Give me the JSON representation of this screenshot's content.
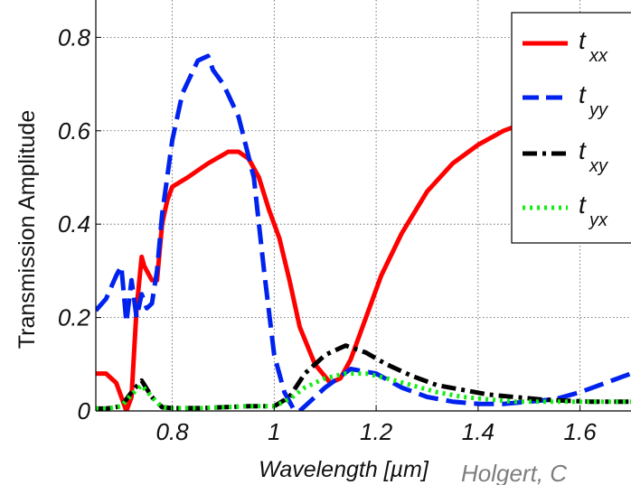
{
  "chart_data": {
    "type": "line",
    "title": "",
    "xlabel": "Wavelength [µm]",
    "ylabel": "Transmission Amplitude",
    "xlim": [
      0.65,
      1.7
    ],
    "ylim": [
      0,
      0.88
    ],
    "x_ticks": [
      0.8,
      1,
      1.2,
      1.4,
      1.6
    ],
    "x_tick_labels": [
      "0.8",
      "1",
      "1.2",
      "1.4",
      "1.6"
    ],
    "y_ticks": [
      0,
      0.2,
      0.4,
      0.6,
      0.8
    ],
    "y_tick_labels": [
      "0",
      "0.2",
      "0.4",
      "0.6",
      "0.8"
    ],
    "grid": true,
    "legend_position": "top-right",
    "watermark": "Holgert, C",
    "series": [
      {
        "name": "txx",
        "label_main": "t",
        "label_sub": "xx",
        "color": "#ff0000",
        "dash": "solid",
        "x": [
          0.65,
          0.67,
          0.69,
          0.71,
          0.72,
          0.73,
          0.74,
          0.745,
          0.76,
          0.77,
          0.78,
          0.79,
          0.8,
          0.83,
          0.87,
          0.91,
          0.93,
          0.95,
          0.97,
          0.99,
          1.01,
          1.03,
          1.05,
          1.08,
          1.11,
          1.13,
          1.15,
          1.18,
          1.21,
          1.25,
          1.3,
          1.35,
          1.4,
          1.45,
          1.5,
          1.55,
          1.6,
          1.65,
          1.7
        ],
        "y": [
          0.08,
          0.08,
          0.06,
          0.0,
          0.03,
          0.22,
          0.33,
          0.31,
          0.28,
          0.28,
          0.4,
          0.45,
          0.48,
          0.5,
          0.53,
          0.555,
          0.555,
          0.54,
          0.5,
          0.43,
          0.37,
          0.28,
          0.18,
          0.1,
          0.06,
          0.07,
          0.11,
          0.2,
          0.29,
          0.38,
          0.47,
          0.53,
          0.57,
          0.6,
          0.62,
          0.64,
          0.66,
          0.68,
          0.695
        ]
      },
      {
        "name": "tyy",
        "label_main": "t",
        "label_sub": "yy",
        "color": "#0022ee",
        "dash": "dashed",
        "x": [
          0.65,
          0.67,
          0.69,
          0.7,
          0.71,
          0.72,
          0.73,
          0.74,
          0.75,
          0.76,
          0.77,
          0.78,
          0.8,
          0.82,
          0.85,
          0.87,
          0.88,
          0.9,
          0.93,
          0.96,
          0.98,
          1.0,
          1.02,
          1.04,
          1.05,
          1.07,
          1.1,
          1.15,
          1.2,
          1.25,
          1.3,
          1.35,
          1.4,
          1.45,
          1.5,
          1.55,
          1.6,
          1.65,
          1.7
        ],
        "y": [
          0.215,
          0.24,
          0.29,
          0.31,
          0.19,
          0.28,
          0.2,
          0.25,
          0.22,
          0.23,
          0.3,
          0.42,
          0.58,
          0.68,
          0.75,
          0.76,
          0.73,
          0.7,
          0.63,
          0.5,
          0.3,
          0.12,
          0.04,
          0.0,
          0.0,
          0.02,
          0.05,
          0.09,
          0.08,
          0.05,
          0.03,
          0.02,
          0.015,
          0.015,
          0.02,
          0.025,
          0.04,
          0.06,
          0.08
        ]
      },
      {
        "name": "txy",
        "label_main": "t",
        "label_sub": "xy",
        "color": "#000000",
        "dash": "dashdot",
        "x": [
          0.65,
          0.67,
          0.7,
          0.72,
          0.74,
          0.76,
          0.78,
          0.8,
          0.85,
          0.9,
          0.95,
          1.0,
          1.03,
          1.06,
          1.1,
          1.14,
          1.18,
          1.22,
          1.27,
          1.32,
          1.37,
          1.42,
          1.47,
          1.52,
          1.57,
          1.62,
          1.67,
          1.7
        ],
        "y": [
          0.005,
          0.005,
          0.01,
          0.04,
          0.065,
          0.03,
          0.008,
          0.006,
          0.006,
          0.008,
          0.01,
          0.01,
          0.03,
          0.08,
          0.12,
          0.14,
          0.125,
          0.1,
          0.075,
          0.055,
          0.045,
          0.035,
          0.03,
          0.025,
          0.022,
          0.02,
          0.02,
          0.02
        ]
      },
      {
        "name": "tyx",
        "label_main": "t",
        "label_sub": "yx",
        "color": "#11ee11",
        "dash": "dotted",
        "x": [
          0.65,
          0.67,
          0.7,
          0.72,
          0.74,
          0.76,
          0.78,
          0.8,
          0.85,
          0.9,
          0.95,
          1.0,
          1.03,
          1.06,
          1.1,
          1.14,
          1.18,
          1.22,
          1.27,
          1.32,
          1.37,
          1.42,
          1.47,
          1.52,
          1.57,
          1.62,
          1.67,
          1.7
        ],
        "y": [
          0.005,
          0.005,
          0.01,
          0.035,
          0.055,
          0.03,
          0.008,
          0.006,
          0.006,
          0.008,
          0.01,
          0.01,
          0.025,
          0.05,
          0.07,
          0.08,
          0.08,
          0.07,
          0.055,
          0.04,
          0.03,
          0.025,
          0.02,
          0.02,
          0.02,
          0.02,
          0.02,
          0.02
        ]
      }
    ]
  }
}
